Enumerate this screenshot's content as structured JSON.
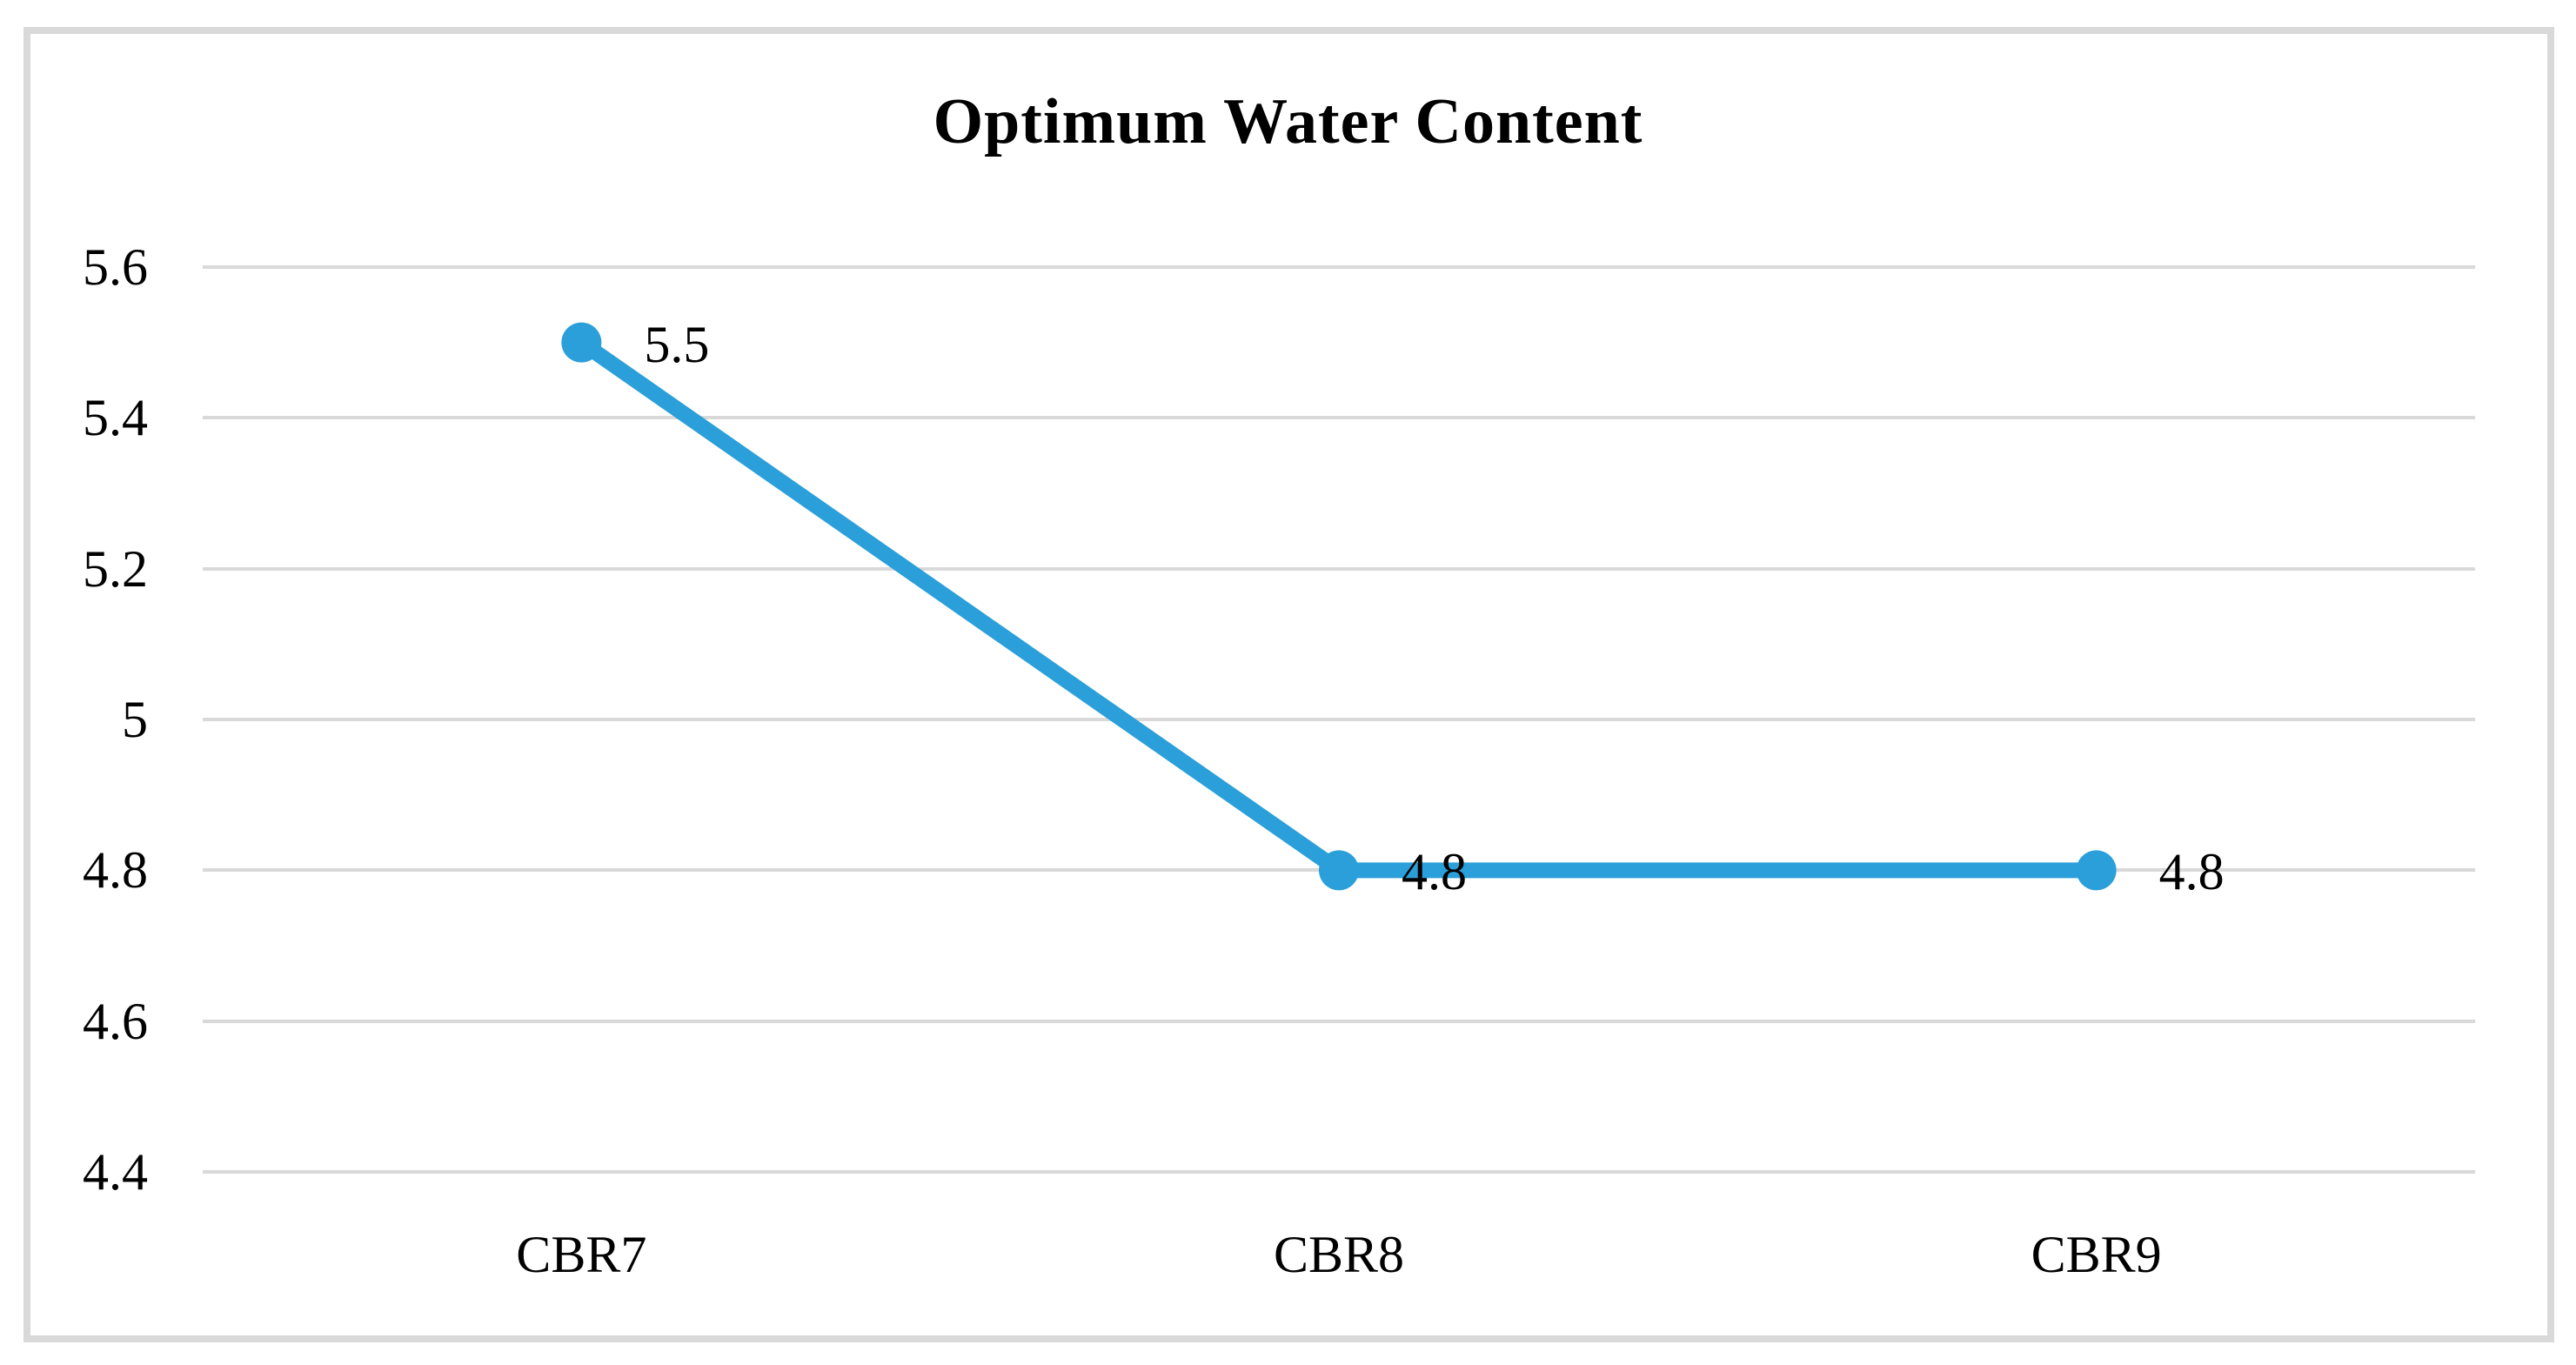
{
  "figure": {
    "title": "Optimum Water Content"
  },
  "chart_data": {
    "type": "line",
    "title": "Optimum Water Content",
    "categories": [
      "CBR7",
      "CBR8",
      "CBR9"
    ],
    "series": [
      {
        "name": "Optimum Water Content",
        "values": [
          5.5,
          4.8,
          4.8
        ]
      }
    ],
    "data_labels": [
      "5.5",
      "4.8",
      "4.8"
    ],
    "ytick_values": [
      5.6,
      5.4,
      5.2,
      5.0,
      4.8,
      4.6,
      4.4
    ],
    "ytick_labels": [
      "5.6",
      "5.4",
      "5.2",
      "5",
      "4.8",
      "4.6",
      "4.4"
    ],
    "ylim": [
      4.4,
      5.6
    ],
    "xlabel": "",
    "ylabel": "",
    "grid": "horizontal",
    "legend": "none",
    "colors": {
      "line": "#2B9FD9",
      "marker": "#2B9FD9",
      "gridline": "#D9D9D9",
      "frame_border": "#D9D9D9",
      "text": "#000000",
      "background": "#FFFFFF"
    }
  }
}
